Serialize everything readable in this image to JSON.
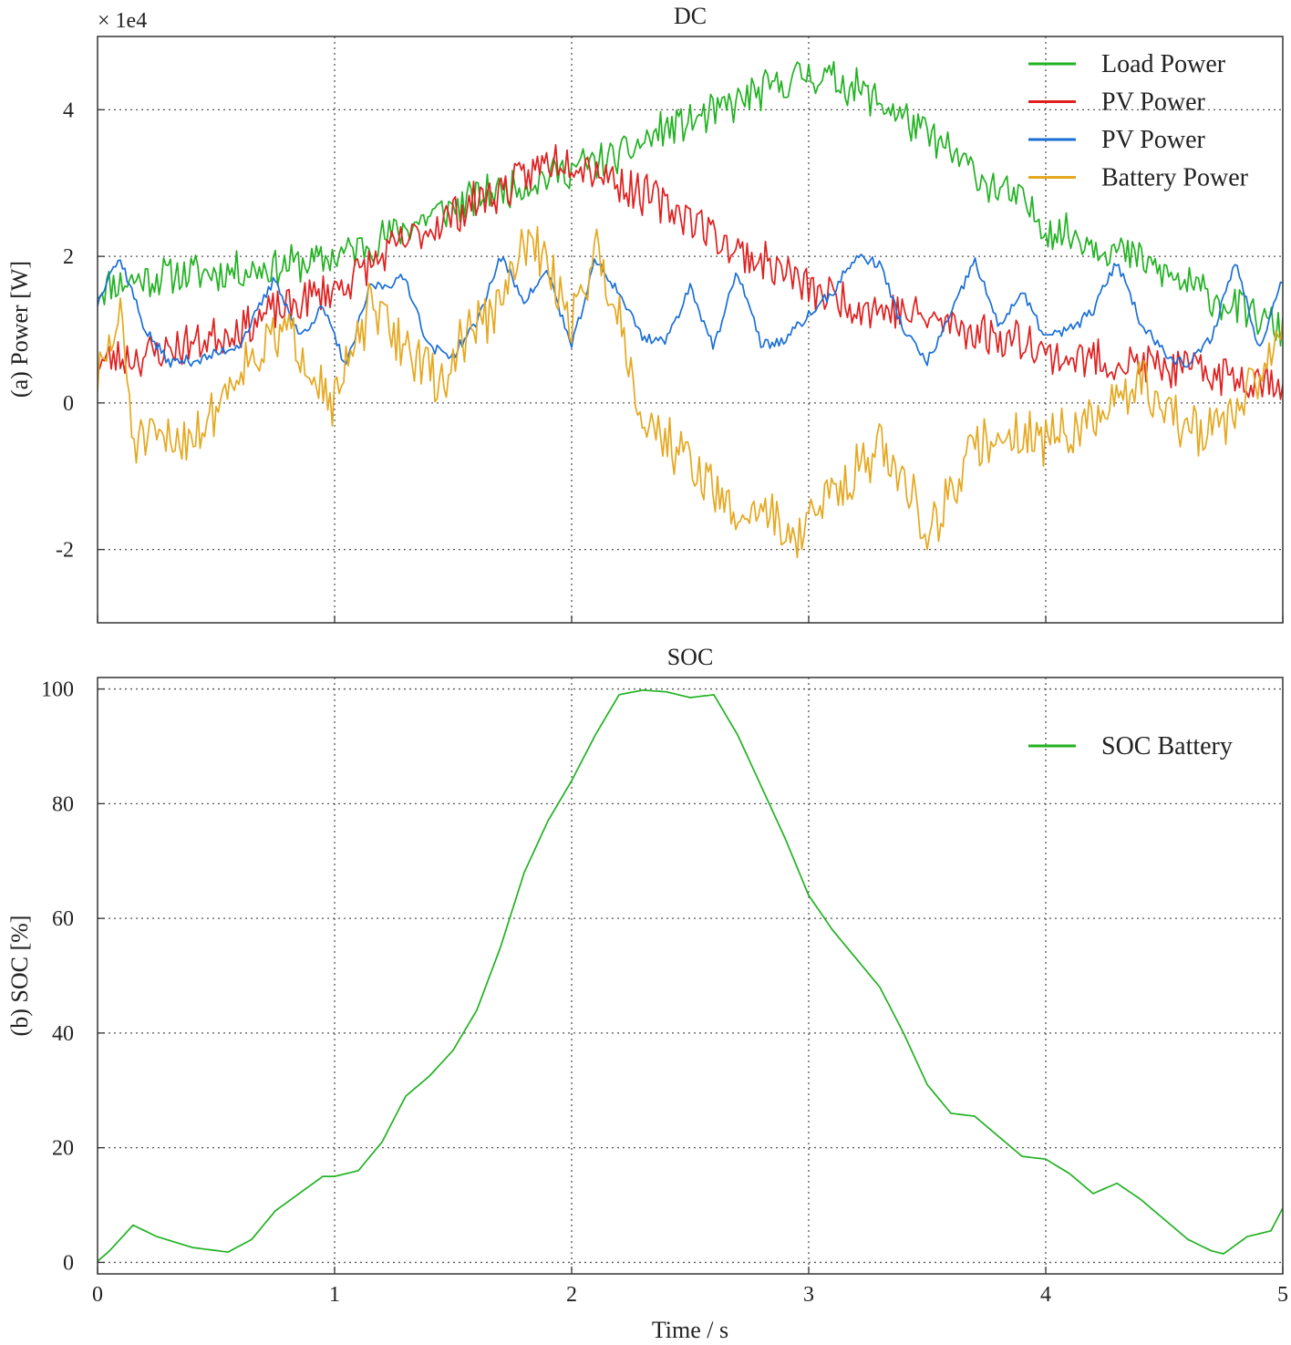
{
  "chart_data": [
    {
      "type": "line",
      "title": "DC",
      "xlabel": "",
      "ylabel": "(a) Power [W]",
      "y_scale_label": "× 1e4",
      "xlim": [
        0,
        5
      ],
      "ylim": [
        -3,
        5
      ],
      "xticks": [
        0,
        1,
        2,
        3,
        4,
        5
      ],
      "yticks": [
        -2,
        0,
        2,
        4
      ],
      "ytick_labels": [
        "-2",
        "0",
        "2",
        "4"
      ],
      "grid": true,
      "legend_position": "top-right",
      "series": [
        {
          "name": "Load Power",
          "color": "#22b222",
          "noise": 0.28,
          "seed": 11,
          "x": [
            0,
            0.1,
            0.3,
            0.6,
            0.95,
            1.0,
            1.2,
            1.4,
            1.6,
            1.8,
            2.0,
            2.2,
            2.4,
            2.6,
            2.8,
            3.0,
            3.2,
            3.4,
            3.6,
            3.8,
            3.9,
            4.0,
            4.2,
            4.4,
            4.6,
            4.8,
            5.0
          ],
          "y": [
            1.55,
            1.65,
            1.75,
            1.8,
            1.95,
            2.0,
            2.25,
            2.55,
            2.8,
            3.0,
            3.2,
            3.35,
            3.75,
            3.95,
            4.25,
            4.5,
            4.3,
            3.9,
            3.4,
            2.9,
            2.75,
            2.4,
            2.2,
            1.95,
            1.6,
            1.3,
            1.0
          ]
        },
        {
          "name": "PV Power",
          "color": "#e02020",
          "noise": 0.3,
          "seed": 23,
          "x": [
            0,
            0.2,
            0.5,
            0.8,
            1.0,
            1.3,
            1.6,
            1.8,
            1.9,
            2.0,
            2.1,
            2.3,
            2.5,
            2.7,
            2.9,
            3.0,
            3.2,
            3.5,
            3.8,
            3.95,
            4.0,
            4.3,
            4.6,
            5.0
          ],
          "y": [
            0.55,
            0.65,
            0.9,
            1.3,
            1.55,
            2.2,
            2.75,
            3.05,
            3.3,
            3.35,
            3.2,
            2.85,
            2.55,
            2.05,
            1.8,
            1.55,
            1.35,
            1.15,
            0.9,
            0.85,
            0.65,
            0.55,
            0.45,
            0.3
          ]
        },
        {
          "name": "PV Power",
          "color": "#1a6fd6",
          "noise": 0.08,
          "seed": 37,
          "x": [
            0,
            0.05,
            0.1,
            0.2,
            0.3,
            0.45,
            0.6,
            0.75,
            0.85,
            0.95,
            1.05,
            1.15,
            1.2,
            1.3,
            1.4,
            1.5,
            1.6,
            1.7,
            1.8,
            1.9,
            2.0,
            2.1,
            2.2,
            2.3,
            2.4,
            2.5,
            2.6,
            2.7,
            2.8,
            2.9,
            3.0,
            3.1,
            3.2,
            3.3,
            3.4,
            3.5,
            3.6,
            3.7,
            3.8,
            3.9,
            4.0,
            4.1,
            4.2,
            4.3,
            4.4,
            4.5,
            4.6,
            4.7,
            4.8,
            4.9,
            5.0
          ],
          "y": [
            1.35,
            1.8,
            1.95,
            1.0,
            0.55,
            0.6,
            0.8,
            1.7,
            0.9,
            1.3,
            0.5,
            1.6,
            1.6,
            1.7,
            0.75,
            0.65,
            1.1,
            2.0,
            1.4,
            1.8,
            0.75,
            1.95,
            1.5,
            0.9,
            0.85,
            1.6,
            0.75,
            1.8,
            0.8,
            0.85,
            1.2,
            1.5,
            2.0,
            1.9,
            1.0,
            0.55,
            1.2,
            1.95,
            1.05,
            1.5,
            0.9,
            1.0,
            1.25,
            1.95,
            1.1,
            0.7,
            0.5,
            0.9,
            1.95,
            0.75,
            1.7
          ]
        },
        {
          "name": "Battery Power",
          "color": "#e5a820",
          "noise": 0.38,
          "seed": 51,
          "x": [
            0,
            0.1,
            0.15,
            0.3,
            0.45,
            0.6,
            0.8,
            0.95,
            1.0,
            1.15,
            1.3,
            1.45,
            1.55,
            1.7,
            1.8,
            1.9,
            2.0,
            2.1,
            2.2,
            2.3,
            2.5,
            2.7,
            2.8,
            2.95,
            3.1,
            3.3,
            3.45,
            3.5,
            3.7,
            3.85,
            4.0,
            4.2,
            4.4,
            4.6,
            4.8,
            5.0
          ],
          "y": [
            0.3,
            1.2,
            -0.5,
            -0.55,
            -0.3,
            0.5,
            1.0,
            0.3,
            0.0,
            1.3,
            0.8,
            0.2,
            0.95,
            1.3,
            2.2,
            1.9,
            1.1,
            2.1,
            1.2,
            -0.2,
            -0.8,
            -1.6,
            -1.4,
            -1.85,
            -1.2,
            -0.6,
            -1.3,
            -1.8,
            -0.6,
            -0.4,
            -0.5,
            -0.3,
            0.3,
            -0.4,
            -0.2,
            1.0
          ]
        }
      ]
    },
    {
      "type": "line",
      "title": "SOC",
      "xlabel": "Time / s",
      "ylabel": "(b) SOC [%]",
      "xlim": [
        0,
        5
      ],
      "ylim": [
        -2,
        102
      ],
      "xticks": [
        0,
        1,
        2,
        3,
        4,
        5
      ],
      "xtick_labels": [
        "0",
        "1",
        "2",
        "3",
        "4",
        "5"
      ],
      "yticks": [
        0,
        20,
        40,
        60,
        80,
        100
      ],
      "ytick_labels": [
        "0",
        "20",
        "40",
        "60",
        "80",
        "100"
      ],
      "grid": true,
      "legend_position": "top-right",
      "series": [
        {
          "name": "SOC Battery",
          "color": "#22b222",
          "x": [
            0,
            0.05,
            0.15,
            0.25,
            0.4,
            0.55,
            0.65,
            0.75,
            0.85,
            0.95,
            1.0,
            1.1,
            1.2,
            1.3,
            1.4,
            1.5,
            1.6,
            1.7,
            1.8,
            1.9,
            2.0,
            2.1,
            2.2,
            2.3,
            2.4,
            2.5,
            2.6,
            2.7,
            2.8,
            2.9,
            3.0,
            3.1,
            3.2,
            3.3,
            3.4,
            3.5,
            3.6,
            3.7,
            3.8,
            3.9,
            4.0,
            4.1,
            4.2,
            4.3,
            4.4,
            4.5,
            4.6,
            4.7,
            4.75,
            4.85,
            4.95,
            5.0
          ],
          "y": [
            0.2,
            2,
            6.5,
            4.5,
            2.6,
            1.8,
            4,
            9,
            12,
            15,
            15,
            16,
            21,
            29,
            32.5,
            37,
            44,
            55,
            68,
            77,
            84,
            92,
            99,
            99.8,
            99.5,
            98.5,
            99,
            92,
            83,
            74,
            64,
            58,
            53,
            48,
            40,
            31,
            26,
            25.5,
            22,
            18.5,
            18,
            15.5,
            12,
            13.8,
            11,
            7.5,
            4,
            2,
            1.5,
            4.5,
            5.5,
            9.5
          ]
        }
      ]
    }
  ]
}
